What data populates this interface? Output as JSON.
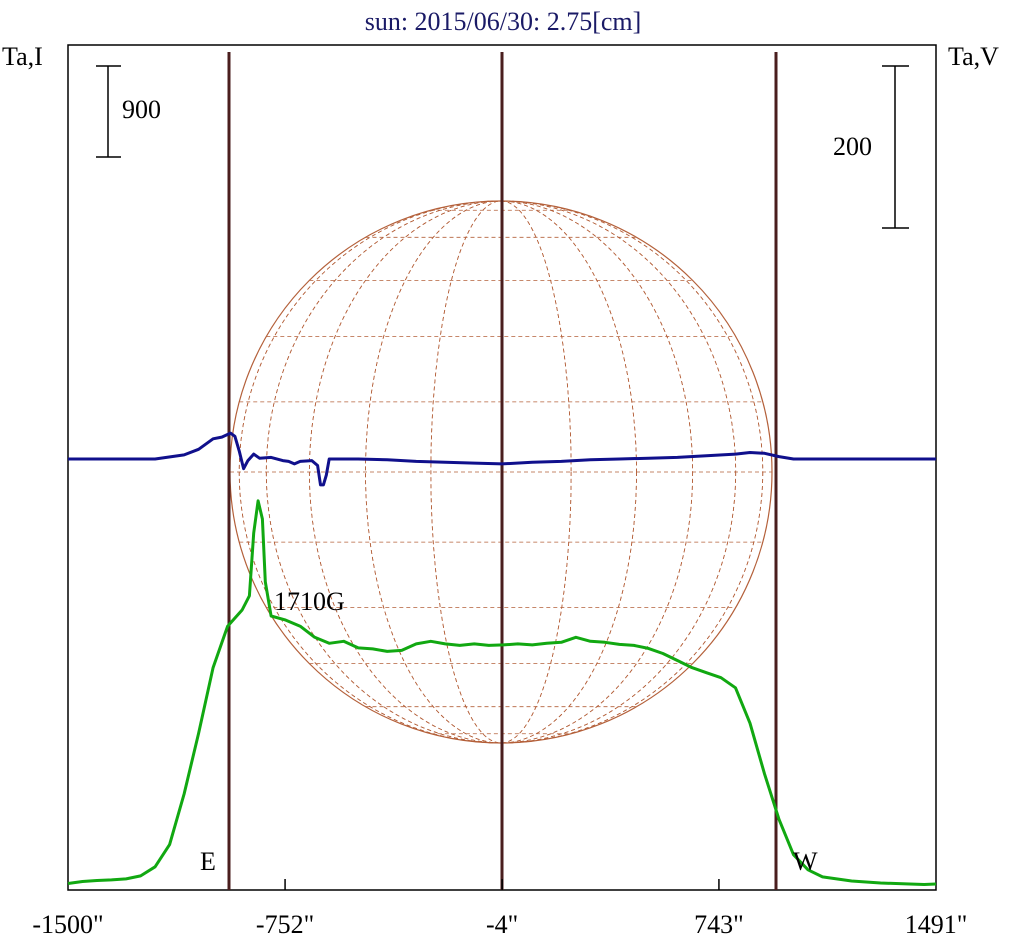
{
  "chart_data": {
    "type": "line",
    "title": "sun: 2015/06/30: 2.75[cm]",
    "ylabel_left": "Ta,I",
    "ylabel_right": "Ta,V",
    "xlim": [
      -1500,
      1491
    ],
    "x_ticks": [
      "-1500\"",
      "-752\"",
      "-4\"",
      "743\"",
      "1491\""
    ],
    "scale_bars": {
      "left": "900",
      "right": "200"
    },
    "limb_labels": {
      "east": "E",
      "west": "W"
    },
    "annotation": "1710G",
    "colors": {
      "intensity": "#11a811",
      "polarization": "#10108c",
      "markers": "#4a1e1e",
      "disk_grid": "#b4603a"
    },
    "series": [
      {
        "key": "intensity",
        "color": "#11a811",
        "points": [
          [
            -1500,
            15
          ],
          [
            -1450,
            35
          ],
          [
            -1400,
            45
          ],
          [
            -1350,
            50
          ],
          [
            -1300,
            60
          ],
          [
            -1250,
            90
          ],
          [
            -1200,
            180
          ],
          [
            -1150,
            400
          ],
          [
            -1100,
            900
          ],
          [
            -1050,
            1500
          ],
          [
            -1000,
            2150
          ],
          [
            -950,
            2560
          ],
          [
            -900,
            2720
          ],
          [
            -875,
            2860
          ],
          [
            -860,
            3480
          ],
          [
            -845,
            3800
          ],
          [
            -830,
            3620
          ],
          [
            -820,
            3000
          ],
          [
            -800,
            2660
          ],
          [
            -750,
            2620
          ],
          [
            -700,
            2560
          ],
          [
            -650,
            2450
          ],
          [
            -600,
            2390
          ],
          [
            -550,
            2410
          ],
          [
            -500,
            2345
          ],
          [
            -450,
            2335
          ],
          [
            -400,
            2310
          ],
          [
            -350,
            2320
          ],
          [
            -300,
            2385
          ],
          [
            -250,
            2410
          ],
          [
            -200,
            2385
          ],
          [
            -150,
            2370
          ],
          [
            -100,
            2385
          ],
          [
            -50,
            2370
          ],
          [
            0,
            2375
          ],
          [
            50,
            2385
          ],
          [
            100,
            2375
          ],
          [
            150,
            2390
          ],
          [
            200,
            2400
          ],
          [
            250,
            2450
          ],
          [
            300,
            2410
          ],
          [
            350,
            2400
          ],
          [
            400,
            2380
          ],
          [
            450,
            2370
          ],
          [
            500,
            2340
          ],
          [
            550,
            2290
          ],
          [
            600,
            2220
          ],
          [
            650,
            2150
          ],
          [
            700,
            2100
          ],
          [
            750,
            2050
          ],
          [
            800,
            1950
          ],
          [
            850,
            1600
          ],
          [
            900,
            1100
          ],
          [
            950,
            650
          ],
          [
            1000,
            300
          ],
          [
            1050,
            150
          ],
          [
            1100,
            80
          ],
          [
            1200,
            40
          ],
          [
            1300,
            20
          ],
          [
            1400,
            10
          ],
          [
            1450,
            5
          ],
          [
            1491,
            10
          ]
        ]
      },
      {
        "key": "polarization",
        "color": "#10108c",
        "points": [
          [
            -1500,
            0
          ],
          [
            -1300,
            0
          ],
          [
            -1200,
            0
          ],
          [
            -1100,
            5
          ],
          [
            -1050,
            12
          ],
          [
            -1000,
            25
          ],
          [
            -970,
            27
          ],
          [
            -940,
            32
          ],
          [
            -925,
            28
          ],
          [
            -910,
            10
          ],
          [
            -895,
            -12
          ],
          [
            -880,
            -2
          ],
          [
            -860,
            6
          ],
          [
            -840,
            1
          ],
          [
            -800,
            2
          ],
          [
            -760,
            -2
          ],
          [
            -740,
            -3
          ],
          [
            -720,
            -6
          ],
          [
            -700,
            -3
          ],
          [
            -660,
            -2
          ],
          [
            -640,
            -8
          ],
          [
            -630,
            -32
          ],
          [
            -620,
            -32
          ],
          [
            -610,
            -20
          ],
          [
            -600,
            0
          ],
          [
            -500,
            0
          ],
          [
            -400,
            -1
          ],
          [
            -300,
            -3
          ],
          [
            -200,
            -4
          ],
          [
            -100,
            -5
          ],
          [
            -4,
            -6
          ],
          [
            100,
            -4
          ],
          [
            200,
            -3
          ],
          [
            300,
            -1
          ],
          [
            400,
            0
          ],
          [
            500,
            1
          ],
          [
            600,
            2
          ],
          [
            700,
            4
          ],
          [
            800,
            6
          ],
          [
            850,
            8
          ],
          [
            900,
            7
          ],
          [
            950,
            3
          ],
          [
            1000,
            0
          ],
          [
            1100,
            0
          ],
          [
            1300,
            0
          ],
          [
            1491,
            0
          ]
        ]
      }
    ],
    "grid": false,
    "legend": "none"
  }
}
